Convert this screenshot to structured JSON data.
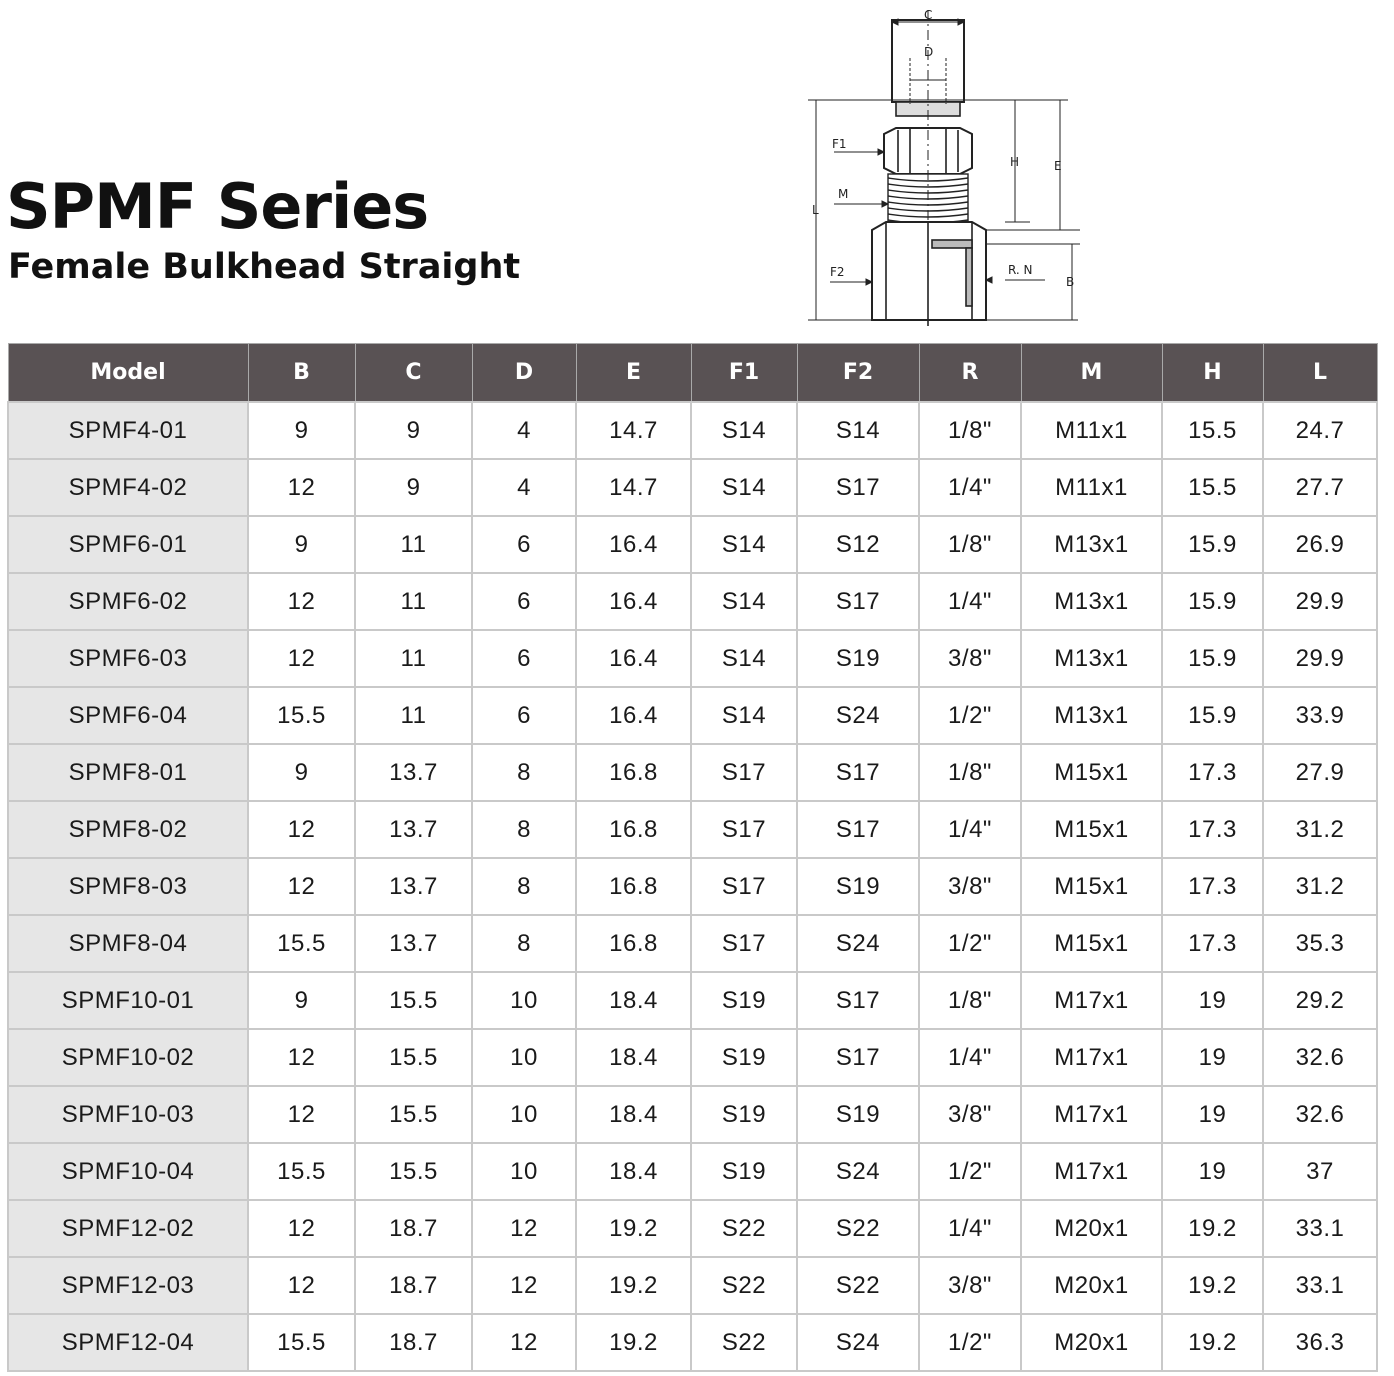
{
  "header": {
    "title": "SPMF Series",
    "subtitle": "Female Bulkhead Straight"
  },
  "drawing": {
    "labels": {
      "c": "C",
      "d": "D",
      "f1": "F1",
      "h": "H",
      "e": "E",
      "m": "M",
      "l": "L",
      "f2": "F2",
      "rn": "R. N",
      "b": "B"
    }
  },
  "table": {
    "columns": [
      "Model",
      "B",
      "C",
      "D",
      "E",
      "F1",
      "F2",
      "R",
      "M",
      "H",
      "L"
    ],
    "rows": [
      [
        "SPMF4-01",
        "9",
        "9",
        "4",
        "14.7",
        "S14",
        "S14",
        "1/8\"",
        "M11x1",
        "15.5",
        "24.7"
      ],
      [
        "SPMF4-02",
        "12",
        "9",
        "4",
        "14.7",
        "S14",
        "S17",
        "1/4\"",
        "M11x1",
        "15.5",
        "27.7"
      ],
      [
        "SPMF6-01",
        "9",
        "11",
        "6",
        "16.4",
        "S14",
        "S12",
        "1/8\"",
        "M13x1",
        "15.9",
        "26.9"
      ],
      [
        "SPMF6-02",
        "12",
        "11",
        "6",
        "16.4",
        "S14",
        "S17",
        "1/4\"",
        "M13x1",
        "15.9",
        "29.9"
      ],
      [
        "SPMF6-03",
        "12",
        "11",
        "6",
        "16.4",
        "S14",
        "S19",
        "3/8\"",
        "M13x1",
        "15.9",
        "29.9"
      ],
      [
        "SPMF6-04",
        "15.5",
        "11",
        "6",
        "16.4",
        "S14",
        "S24",
        "1/2\"",
        "M13x1",
        "15.9",
        "33.9"
      ],
      [
        "SPMF8-01",
        "9",
        "13.7",
        "8",
        "16.8",
        "S17",
        "S17",
        "1/8\"",
        "M15x1",
        "17.3",
        "27.9"
      ],
      [
        "SPMF8-02",
        "12",
        "13.7",
        "8",
        "16.8",
        "S17",
        "S17",
        "1/4\"",
        "M15x1",
        "17.3",
        "31.2"
      ],
      [
        "SPMF8-03",
        "12",
        "13.7",
        "8",
        "16.8",
        "S17",
        "S19",
        "3/8\"",
        "M15x1",
        "17.3",
        "31.2"
      ],
      [
        "SPMF8-04",
        "15.5",
        "13.7",
        "8",
        "16.8",
        "S17",
        "S24",
        "1/2\"",
        "M15x1",
        "17.3",
        "35.3"
      ],
      [
        "SPMF10-01",
        "9",
        "15.5",
        "10",
        "18.4",
        "S19",
        "S17",
        "1/8\"",
        "M17x1",
        "19",
        "29.2"
      ],
      [
        "SPMF10-02",
        "12",
        "15.5",
        "10",
        "18.4",
        "S19",
        "S17",
        "1/4\"",
        "M17x1",
        "19",
        "32.6"
      ],
      [
        "SPMF10-03",
        "12",
        "15.5",
        "10",
        "18.4",
        "S19",
        "S19",
        "3/8\"",
        "M17x1",
        "19",
        "32.6"
      ],
      [
        "SPMF10-04",
        "15.5",
        "15.5",
        "10",
        "18.4",
        "S19",
        "S24",
        "1/2\"",
        "M17x1",
        "19",
        "37"
      ],
      [
        "SPMF12-02",
        "12",
        "18.7",
        "12",
        "19.2",
        "S22",
        "S22",
        "1/4\"",
        "M20x1",
        "19.2",
        "33.1"
      ],
      [
        "SPMF12-03",
        "12",
        "18.7",
        "12",
        "19.2",
        "S22",
        "S22",
        "3/8\"",
        "M20x1",
        "19.2",
        "33.1"
      ],
      [
        "SPMF12-04",
        "15.5",
        "18.7",
        "12",
        "19.2",
        "S22",
        "S24",
        "1/2\"",
        "M20x1",
        "19.2",
        "36.3"
      ]
    ]
  }
}
